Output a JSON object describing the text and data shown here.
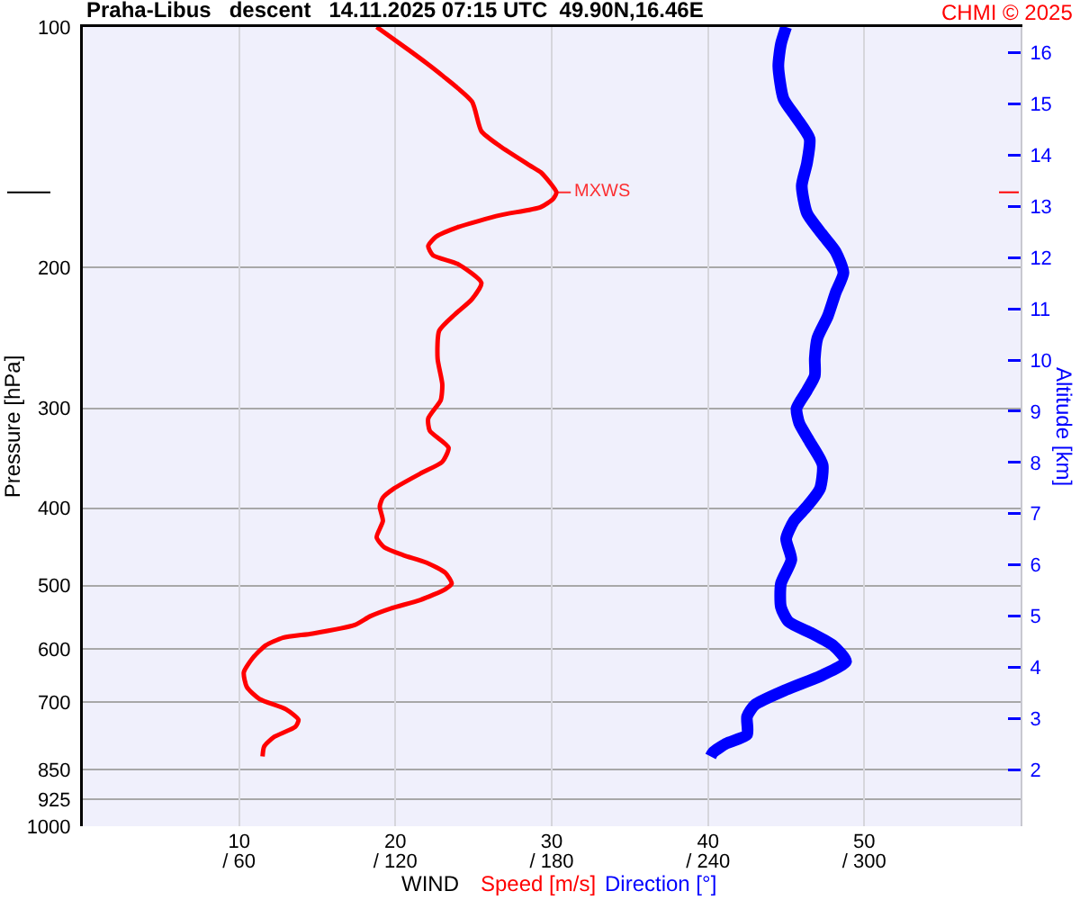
{
  "chart_data": {
    "type": "line",
    "title": "Praha-Libus   descent   14.11.2025 07:15 UTC  49.90N,16.46E",
    "xlabel": "WIND",
    "ylabel": "Pressure [hPa]",
    "y2label": "Altitude [km]",
    "annotations": [
      "CHMI © 2025",
      {
        "text": "MXWS",
        "x": 30.3,
        "y": 161
      }
    ],
    "xlim": [
      0,
      60
    ],
    "xticks": [
      10,
      20,
      30,
      40,
      50
    ],
    "x2lim": [
      0,
      360
    ],
    "x2ticks": [
      {
        "value": 60,
        "label": "/ 60"
      },
      {
        "value": 120,
        "label": "/ 120"
      },
      {
        "value": 180,
        "label": "/ 180"
      },
      {
        "value": 240,
        "label": "/ 240"
      },
      {
        "value": 300,
        "label": "/ 300"
      }
    ],
    "ylim": [
      1000,
      100
    ],
    "yticks": [
      100,
      200,
      300,
      400,
      500,
      600,
      700,
      850,
      925,
      1000
    ],
    "y2lim": [
      0.9,
      16.5
    ],
    "y2ticks": [
      2,
      3,
      4,
      5,
      6,
      7,
      8,
      9,
      10,
      11,
      12,
      13,
      14,
      15,
      16
    ],
    "log": "y",
    "grid": true,
    "series": [
      {
        "name": "Speed [m/s]",
        "color": "#ff0000",
        "x": [
          18.8,
          20.9,
          22.0,
          23.0,
          24.9,
          25.5,
          26.7,
          28.6,
          29.3,
          30.3,
          30.1,
          29.3,
          26.7,
          24.0,
          22.6,
          22.1,
          22.4,
          24.0,
          25.5,
          24.9,
          23.8,
          22.8,
          22.7,
          23.0,
          22.9,
          22.1,
          22.2,
          23.4,
          23.0,
          21.6,
          19.9,
          19.2,
          19.0,
          19.2,
          18.8,
          19.3,
          20.5,
          22.0,
          23.2,
          23.6,
          23.2,
          21.6,
          19.7,
          18.4,
          17.4,
          14.7,
          12.8,
          11.7,
          10.9,
          10.3,
          10.5,
          11.3,
          13.0,
          13.8,
          13.6,
          12.2,
          11.6,
          11.5
        ],
        "values": [
          100,
          107,
          111,
          115,
          124,
          135,
          141,
          149,
          152,
          161,
          164,
          168,
          172,
          178,
          183,
          188,
          193,
          198,
          209,
          219,
          229,
          240,
          260,
          280,
          293,
          309,
          320,
          336,
          350,
          362,
          378,
          388,
          398,
          415,
          435,
          448,
          458,
          468,
          482,
          497,
          505,
          521,
          534,
          546,
          560,
          574,
          581,
          594,
          615,
          642,
          670,
          693,
          714,
          736,
          751,
          774,
          795,
          818
        ]
      },
      {
        "name": "Direction [°]",
        "color": "#0000ff",
        "axis": "x2",
        "x": [
          270,
          268,
          267,
          269,
          274,
          279,
          278,
          276,
          278,
          284,
          289,
          292,
          289,
          286,
          282,
          281,
          281,
          278,
          274,
          275,
          279,
          284,
          283,
          278,
          273,
          270,
          272,
          268,
          268,
          271,
          280,
          288,
          293,
          284,
          270,
          258,
          255,
          255,
          247,
          242,
          241
        ],
        "values": [
          100,
          105,
          112,
          123,
          130,
          138,
          148,
          158,
          171,
          182,
          191,
          203,
          215,
          230,
          245,
          260,
          273,
          285,
          300,
          313,
          330,
          353,
          378,
          398,
          415,
          437,
          464,
          497,
          532,
          555,
          574,
          594,
          622,
          647,
          675,
          705,
          729,
          768,
          788,
          808,
          818
        ]
      }
    ]
  }
}
